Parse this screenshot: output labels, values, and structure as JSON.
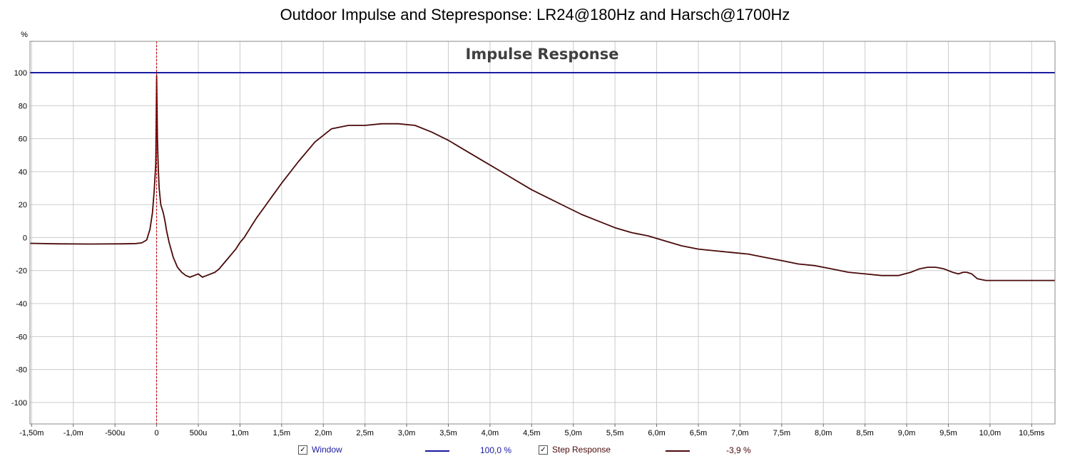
{
  "title": "Outdoor Impulse and Stepresponse: LR24@180Hz and Harsch@1700Hz",
  "colors": {
    "window": "#1a1aa0",
    "step": "#4a0a0a",
    "grid": "#cccccc",
    "marker": "#cc0000"
  },
  "legend": {
    "window_label": "Window",
    "window_value": "100,0 %",
    "step_label": "Step Response",
    "step_value": "-3,9 %",
    "check_mark": "✓"
  },
  "chart_data": {
    "type": "line",
    "title": "Impulse Response",
    "ylabel": "%",
    "xlabel": "",
    "xlim": [
      -1.52,
      10.78
    ],
    "ylim": [
      -113,
      119
    ],
    "grid": true,
    "legend_position": "bottom",
    "x_ticks": [
      {
        "v": -1.5,
        "label": "-1,50m"
      },
      {
        "v": -1.0,
        "label": "-1,0m"
      },
      {
        "v": -0.5,
        "label": "-500u"
      },
      {
        "v": 0,
        "label": "0"
      },
      {
        "v": 0.5,
        "label": "500u"
      },
      {
        "v": 1.0,
        "label": "1,0m"
      },
      {
        "v": 1.5,
        "label": "1,5m"
      },
      {
        "v": 2.0,
        "label": "2,0m"
      },
      {
        "v": 2.5,
        "label": "2,5m"
      },
      {
        "v": 3.0,
        "label": "3,0m"
      },
      {
        "v": 3.5,
        "label": "3,5m"
      },
      {
        "v": 4.0,
        "label": "4,0m"
      },
      {
        "v": 4.5,
        "label": "4,5m"
      },
      {
        "v": 5.0,
        "label": "5,0m"
      },
      {
        "v": 5.5,
        "label": "5,5m"
      },
      {
        "v": 6.0,
        "label": "6,0m"
      },
      {
        "v": 6.5,
        "label": "6,5m"
      },
      {
        "v": 7.0,
        "label": "7,0m"
      },
      {
        "v": 7.5,
        "label": "7,5m"
      },
      {
        "v": 8.0,
        "label": "8,0m"
      },
      {
        "v": 8.5,
        "label": "8,5m"
      },
      {
        "v": 9.0,
        "label": "9,0m"
      },
      {
        "v": 9.5,
        "label": "9,5m"
      },
      {
        "v": 10.0,
        "label": "10,0m"
      },
      {
        "v": 10.5,
        "label": "10,5ms"
      }
    ],
    "y_ticks": [
      100,
      80,
      60,
      40,
      20,
      0,
      -20,
      -40,
      -60,
      -80,
      -100
    ],
    "marker_x": 0,
    "series": [
      {
        "name": "Window",
        "key": "window",
        "x": [
          -1.52,
          10.78
        ],
        "y": [
          100,
          100
        ]
      },
      {
        "name": "Step Response",
        "key": "step",
        "x": [
          -1.52,
          -1.2,
          -0.8,
          -0.4,
          -0.25,
          -0.18,
          -0.12,
          -0.08,
          -0.05,
          -0.03,
          -0.02,
          -0.01,
          0.0,
          0.01,
          0.02,
          0.03,
          0.05,
          0.08,
          0.1,
          0.12,
          0.15,
          0.2,
          0.25,
          0.3,
          0.35,
          0.4,
          0.45,
          0.5,
          0.55,
          0.6,
          0.65,
          0.7,
          0.75,
          0.8,
          0.85,
          0.9,
          0.95,
          1.0,
          1.05,
          1.1,
          1.15,
          1.2,
          1.3,
          1.4,
          1.5,
          1.7,
          1.9,
          2.1,
          2.3,
          2.5,
          2.7,
          2.9,
          3.1,
          3.3,
          3.5,
          3.7,
          3.9,
          4.1,
          4.3,
          4.5,
          4.7,
          4.9,
          5.1,
          5.3,
          5.5,
          5.7,
          5.9,
          6.1,
          6.3,
          6.5,
          6.7,
          6.9,
          7.1,
          7.3,
          7.5,
          7.7,
          7.9,
          8.1,
          8.3,
          8.5,
          8.7,
          8.9,
          9.05,
          9.15,
          9.25,
          9.35,
          9.45,
          9.55,
          9.62,
          9.68,
          9.72,
          9.78,
          9.85,
          9.95,
          10.05,
          10.15,
          10.3,
          10.45,
          10.6,
          10.78
        ],
        "y": [
          -3.5,
          -3.8,
          -3.9,
          -3.8,
          -3.6,
          -3.2,
          -1.5,
          5,
          15,
          28,
          36,
          45,
          98,
          60,
          42,
          30,
          20,
          15,
          10,
          4,
          -3,
          -12,
          -18,
          -21,
          -23,
          -24,
          -23,
          -22,
          -24,
          -23,
          -22,
          -21,
          -19,
          -16,
          -13,
          -10,
          -7,
          -3,
          0,
          4,
          8,
          12,
          19,
          26,
          33,
          46,
          58,
          66,
          68,
          68,
          69,
          69,
          68,
          64,
          59,
          53,
          47,
          41,
          35,
          29,
          24,
          19,
          14,
          10,
          6,
          3,
          1,
          -2,
          -5,
          -7,
          -8,
          -9,
          -10,
          -12,
          -14,
          -16,
          -17,
          -19,
          -21,
          -22,
          -23,
          -23,
          -21,
          -19,
          -18,
          -18,
          -19,
          -21,
          -22,
          -21,
          -21,
          -22,
          -25,
          -26,
          -26,
          -26,
          -26,
          -26,
          -26,
          -26
        ]
      }
    ]
  }
}
